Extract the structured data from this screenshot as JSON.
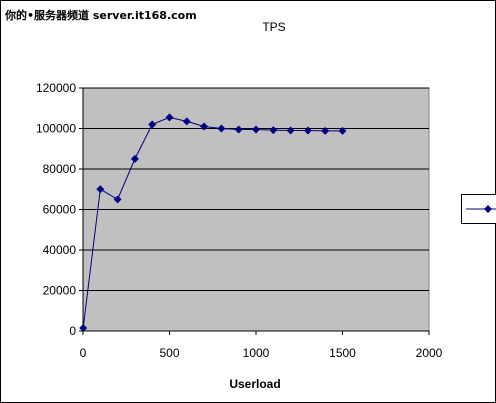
{
  "watermark": "你的•服务器频道 server.it168.com",
  "chart_data": {
    "type": "line",
    "title": "TPS",
    "xlabel": "Userload",
    "ylabel": "",
    "xlim": [
      0,
      2000
    ],
    "ylim": [
      0,
      120000
    ],
    "x_ticks": [
      "0",
      "500",
      "1000",
      "1500",
      "2000"
    ],
    "y_ticks": [
      "0",
      "20000",
      "40000",
      "60000",
      "80000",
      "100000",
      "120000"
    ],
    "grid": true,
    "legend_position": "right",
    "plot_background": "#c0c0c0",
    "series_color": "#000080",
    "series": [
      {
        "x": [
          1,
          100,
          200,
          300,
          400,
          500,
          600,
          700,
          800,
          900,
          1000,
          1100,
          1200,
          1300,
          1400,
          1500
        ],
        "values": [
          1500,
          70000,
          65000,
          85000,
          102000,
          105500,
          103500,
          101000,
          100000,
          99500,
          99500,
          99200,
          99000,
          99000,
          98800,
          98800
        ]
      }
    ]
  }
}
